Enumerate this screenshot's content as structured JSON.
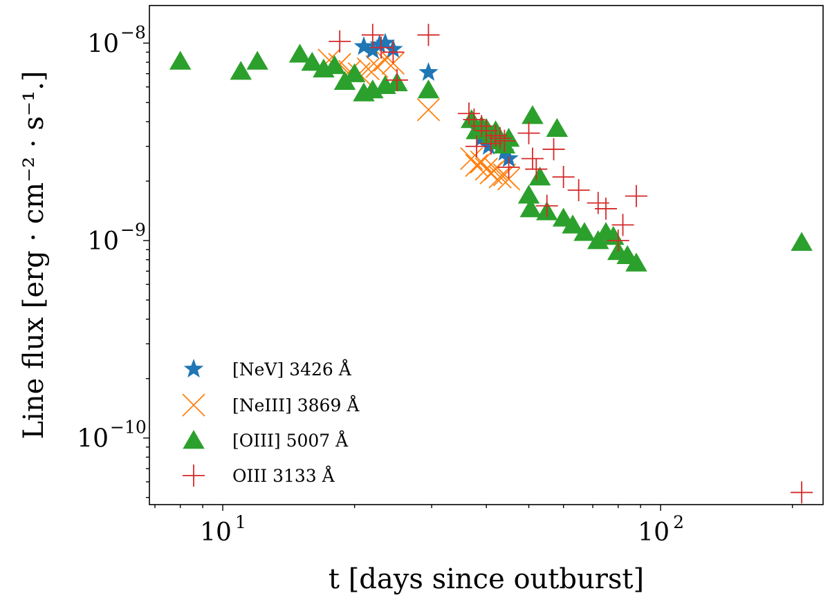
{
  "chart_data": {
    "type": "scatter",
    "xscale": "log",
    "yscale": "log",
    "xlim": [
      6.8,
      235
    ],
    "ylim": [
      4.6e-11,
      1.55e-08
    ],
    "xlabel": "t [days since outburst]",
    "ylabel": "Line flux [erg · cm⁻² · s⁻¹.]",
    "x_ticks": [
      {
        "value": 10,
        "base": "10",
        "exp": "1"
      },
      {
        "value": 100,
        "base": "10",
        "exp": "2"
      }
    ],
    "y_ticks": [
      {
        "value": 1e-10,
        "base": "10",
        "exp": "−10"
      },
      {
        "value": 1e-09,
        "base": "10",
        "exp": "−9"
      },
      {
        "value": 1e-08,
        "base": "10",
        "exp": "−8"
      }
    ],
    "legend_position": "lower-left",
    "series": [
      {
        "name": "[NeV] 3426 Å",
        "marker": "star",
        "color": "#1f77b4",
        "points": [
          [
            21.0,
            9.6e-09
          ],
          [
            22.0,
            9.2e-09
          ],
          [
            22.8,
            9.8e-09
          ],
          [
            23.5,
            1e-08
          ],
          [
            24.5,
            9.3e-09
          ],
          [
            29.5,
            7.1e-09
          ],
          [
            38.0,
            3.7e-09
          ],
          [
            39.0,
            3.3e-09
          ],
          [
            40.5,
            3e-09
          ],
          [
            42.0,
            3.1e-09
          ],
          [
            44.0,
            2.8e-09
          ],
          [
            45.0,
            2.6e-09
          ]
        ]
      },
      {
        "name": "[NeIII] 3869 Å",
        "marker": "x",
        "color": "#ff7f0e",
        "points": [
          [
            17.5,
            8.2e-09
          ],
          [
            18.5,
            7.8e-09
          ],
          [
            19.5,
            7.2e-09
          ],
          [
            20.5,
            7e-09
          ],
          [
            21.5,
            7.4e-09
          ],
          [
            22.5,
            7.6e-09
          ],
          [
            23.5,
            8.2e-09
          ],
          [
            24.5,
            7.9e-09
          ],
          [
            29.5,
            4.6e-09
          ],
          [
            37.0,
            2.6e-09
          ],
          [
            38.0,
            2.4e-09
          ],
          [
            39.0,
            2.5e-09
          ],
          [
            40.0,
            2.3e-09
          ],
          [
            41.0,
            2.2e-09
          ],
          [
            42.0,
            2.3e-09
          ],
          [
            43.0,
            2.1e-09
          ],
          [
            44.0,
            2.15e-09
          ],
          [
            45.0,
            2.05e-09
          ]
        ]
      },
      {
        "name": "[OIII] 5007 Å",
        "marker": "triangle",
        "color": "#2ca02c",
        "points": [
          [
            8.0,
            8.1e-09
          ],
          [
            11.0,
            7.2e-09
          ],
          [
            12.0,
            8.1e-09
          ],
          [
            15.0,
            8.8e-09
          ],
          [
            16.0,
            8e-09
          ],
          [
            17.0,
            7.4e-09
          ],
          [
            18.0,
            7.7e-09
          ],
          [
            19.0,
            6.4e-09
          ],
          [
            20.0,
            7e-09
          ],
          [
            21.0,
            5.6e-09
          ],
          [
            22.0,
            5.8e-09
          ],
          [
            23.5,
            6.1e-09
          ],
          [
            25.0,
            6.3e-09
          ],
          [
            29.5,
            5.8e-09
          ],
          [
            37.0,
            4.1e-09
          ],
          [
            38.0,
            3.6e-09
          ],
          [
            39.0,
            3.8e-09
          ],
          [
            40.0,
            3.7e-09
          ],
          [
            41.0,
            3.4e-09
          ],
          [
            42.0,
            3.6e-09
          ],
          [
            43.0,
            3.2e-09
          ],
          [
            44.0,
            3.05e-09
          ],
          [
            45.0,
            3.3e-09
          ],
          [
            50.0,
            1.7e-09
          ],
          [
            50.5,
            1.45e-09
          ],
          [
            51.0,
            4.3e-09
          ],
          [
            53.0,
            2.1e-09
          ],
          [
            55.0,
            1.4e-09
          ],
          [
            58.0,
            3.7e-09
          ],
          [
            60.0,
            1.3e-09
          ],
          [
            63.0,
            1.2e-09
          ],
          [
            67.0,
            1.1e-09
          ],
          [
            72.0,
            1e-09
          ],
          [
            75.0,
            1.1e-09
          ],
          [
            78.0,
            1.05e-09
          ],
          [
            80.0,
            8.8e-10
          ],
          [
            84.0,
            8.4e-10
          ],
          [
            88.0,
            7.7e-10
          ],
          [
            210.0,
            9.8e-10
          ]
        ]
      },
      {
        "name": "OIII 3133 Å",
        "marker": "plus",
        "color": "#d62728",
        "points": [
          [
            18.5,
            1.02e-08
          ],
          [
            22.0,
            1.1e-08
          ],
          [
            23.0,
            9.5e-09
          ],
          [
            24.5,
            9e-09
          ],
          [
            25.0,
            6.5e-09
          ],
          [
            29.5,
            1.1e-08
          ],
          [
            36.5,
            4.4e-09
          ],
          [
            37.5,
            4.1e-09
          ],
          [
            38.0,
            3e-09
          ],
          [
            39.0,
            3.8e-09
          ],
          [
            40.0,
            3.6e-09
          ],
          [
            41.0,
            3.1e-09
          ],
          [
            42.0,
            3.4e-09
          ],
          [
            43.0,
            3.3e-09
          ],
          [
            44.0,
            3.2e-09
          ],
          [
            45.0,
            2.35e-09
          ],
          [
            50.0,
            3.5e-09
          ],
          [
            51.0,
            2.6e-09
          ],
          [
            52.0,
            2.3e-09
          ],
          [
            55.0,
            1.5e-09
          ],
          [
            57.0,
            2.9e-09
          ],
          [
            60.0,
            2.1e-09
          ],
          [
            65.0,
            1.8e-09
          ],
          [
            72.0,
            1.55e-09
          ],
          [
            75.0,
            1.45e-09
          ],
          [
            80.0,
            1e-09
          ],
          [
            82.0,
            1.2e-09
          ],
          [
            88.0,
            1.68e-09
          ],
          [
            210.0,
            5.3e-11
          ]
        ]
      }
    ]
  }
}
